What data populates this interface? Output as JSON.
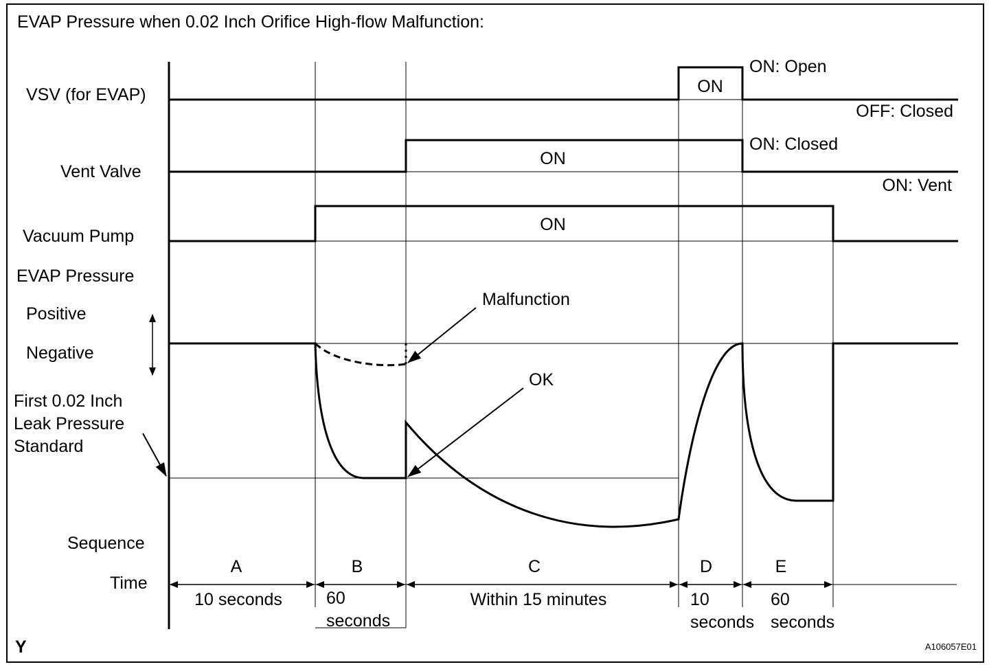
{
  "title": "EVAP Pressure when 0.02 Inch Orifice High-flow Malfunction:",
  "row_labels": {
    "vsv": "VSV (for EVAP)",
    "vent_valve": "Vent Valve",
    "vacuum_pump": "Vacuum Pump",
    "evap_pressure": "EVAP Pressure",
    "positive": "Positive",
    "negative": "Negative",
    "standard_line1": "First 0.02 Inch",
    "standard_line2": "Leak Pressure",
    "standard_line3": "Standard",
    "sequence": "Sequence",
    "time": "Time"
  },
  "signals": {
    "vsv_on": "ON",
    "vsv_on_state": "ON: Open",
    "vsv_off_state": "OFF: Closed",
    "vent_on": "ON",
    "vent_on_state": "ON: Closed",
    "vent_off_state": "ON: Vent",
    "pump_on": "ON"
  },
  "annotations": {
    "malfunction": "Malfunction",
    "ok": "OK"
  },
  "sequence": [
    {
      "id": "A",
      "time": [
        "10 seconds"
      ]
    },
    {
      "id": "B",
      "time": [
        "60",
        "seconds"
      ]
    },
    {
      "id": "C",
      "time": [
        "Within 15 minutes"
      ]
    },
    {
      "id": "D",
      "time": [
        "10",
        "seconds"
      ]
    },
    {
      "id": "E",
      "time": [
        "60",
        "seconds"
      ]
    }
  ],
  "footer": {
    "left_mark": "Y",
    "figure_id": "A106057E01"
  }
}
